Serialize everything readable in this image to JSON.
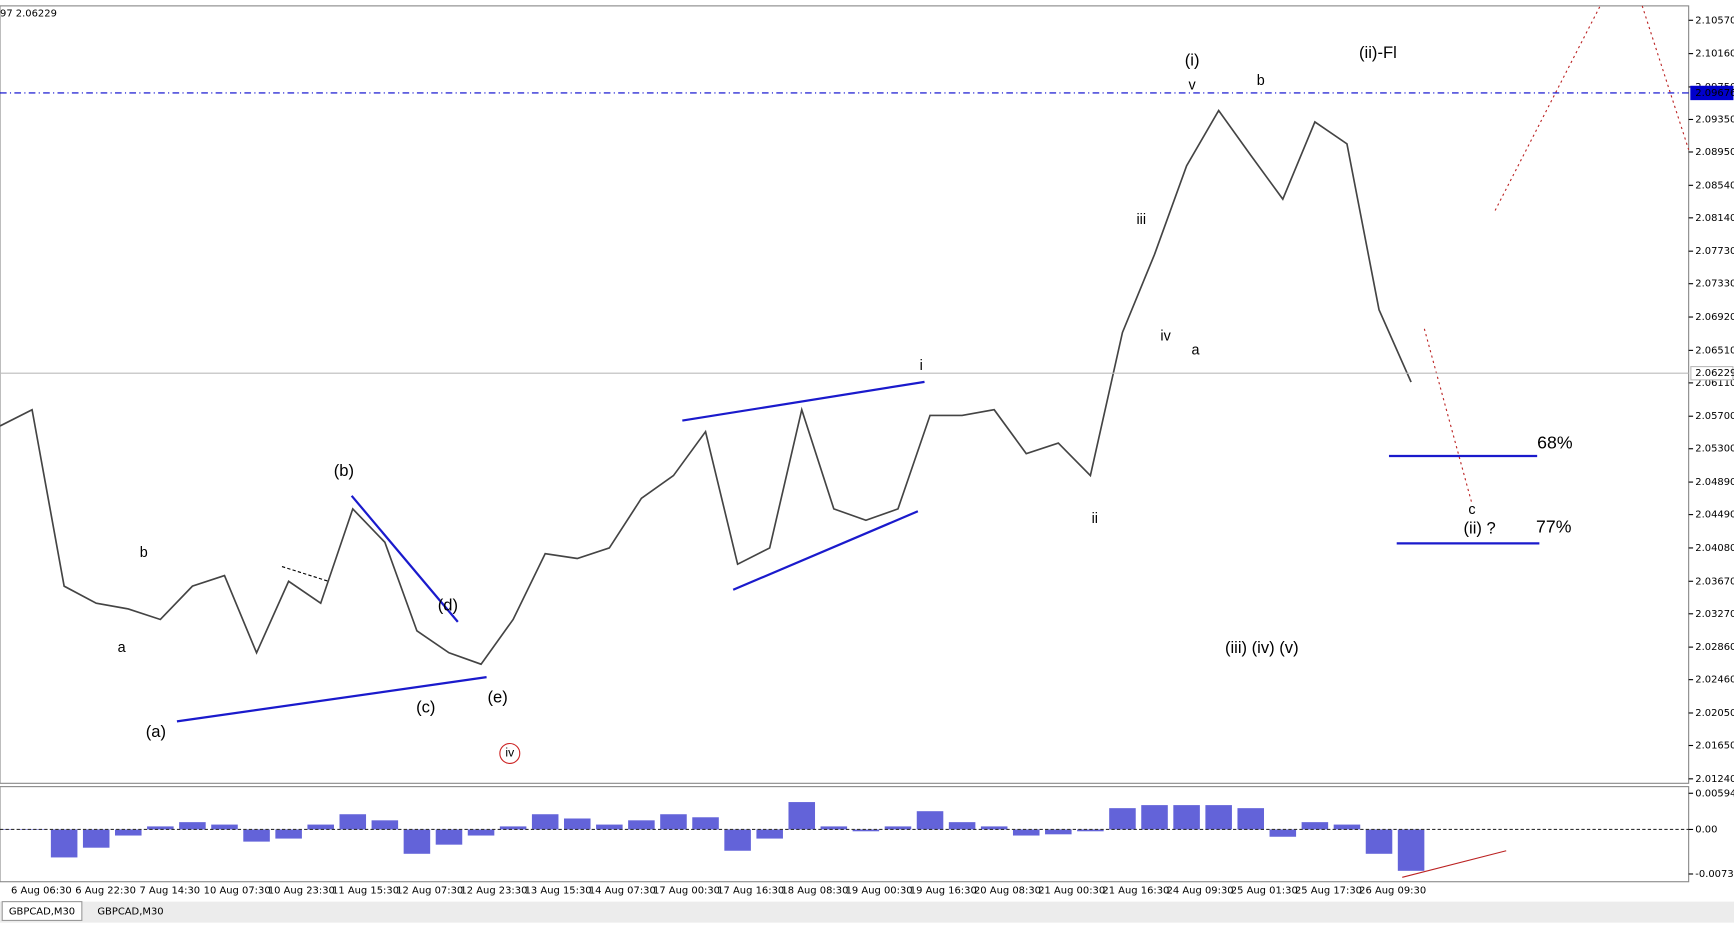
{
  "chart_data": [
    {
      "type": "line",
      "header": "97 2.06229",
      "series": [
        {
          "color": "#444444",
          "values": [
            2.0558,
            2.0578,
            2.0361,
            2.034,
            2.0333,
            2.032,
            2.0361,
            2.0374,
            2.0279,
            2.0367,
            2.034,
            2.0456,
            2.0415,
            2.0306,
            2.0279,
            2.0265,
            2.032,
            2.0401,
            2.0395,
            2.0408,
            2.0469,
            2.0497,
            2.0551,
            2.0388,
            2.0408,
            2.0578,
            2.0456,
            2.0442,
            2.0456,
            2.0571,
            2.0571,
            2.0578,
            2.0524,
            2.0537,
            2.0497,
            2.0673,
            2.0769,
            2.0878,
            2.0946,
            2.0891,
            2.0837,
            2.0932,
            2.0905,
            2.0701,
            2.0612
          ]
        }
      ],
      "ylim": [
        2.01185,
        2.10747
      ],
      "yticks": [
        {
          "value": 2.1057,
          "label": "2.10570"
        },
        {
          "value": 2.1016,
          "label": "2.10160"
        },
        {
          "value": 2.0975,
          "label": "2.09750"
        },
        {
          "value": 2.0935,
          "label": "2.09350"
        },
        {
          "value": 2.0895,
          "label": "2.08950"
        },
        {
          "value": 2.0854,
          "label": "2.08540"
        },
        {
          "value": 2.0814,
          "label": "2.08140"
        },
        {
          "value": 2.0773,
          "label": "2.07730"
        },
        {
          "value": 2.0733,
          "label": "2.07330"
        },
        {
          "value": 2.0692,
          "label": "2.06920"
        },
        {
          "value": 2.0651,
          "label": "2.06510"
        },
        {
          "value": 2.0611,
          "label": "2.06110"
        },
        {
          "value": 2.057,
          "label": "2.05700"
        },
        {
          "value": 2.053,
          "label": "2.05300"
        },
        {
          "value": 2.0489,
          "label": "2.04890"
        },
        {
          "value": 2.0449,
          "label": "2.04490"
        },
        {
          "value": 2.0408,
          "label": "2.04080"
        },
        {
          "value": 2.0367,
          "label": "2.03670"
        },
        {
          "value": 2.0327,
          "label": "2.03270"
        },
        {
          "value": 2.0286,
          "label": "2.02860"
        },
        {
          "value": 2.0246,
          "label": "2.02460"
        },
        {
          "value": 2.0205,
          "label": "2.02050"
        },
        {
          "value": 2.0165,
          "label": "2.01650"
        },
        {
          "value": 2.0124,
          "label": "2.01240"
        }
      ],
      "price_lines": [
        {
          "value": 2.09676,
          "label": "2.09676",
          "color": "#0000cc"
        },
        {
          "value": 2.06229,
          "label": "2.06229",
          "color": "#bbbbbb"
        }
      ],
      "x_tick_labels": [
        "6 Aug 06:30",
        "6 Aug 22:30",
        "7 Aug 14:30",
        "10 Aug 07:30",
        "10 Aug 23:30",
        "11 Aug 15:30",
        "12 Aug 07:30",
        "12 Aug 23:30",
        "13 Aug 15:30",
        "14 Aug 07:30",
        "17 Aug 00:30",
        "17 Aug 16:30",
        "18 Aug 08:30",
        "19 Aug 00:30",
        "19 Aug 16:30",
        "20 Aug 08:30",
        "21 Aug 00:30",
        "21 Aug 16:30",
        "24 Aug 09:30",
        "25 Aug 01:30",
        "25 Aug 17:30",
        "26 Aug 09:30"
      ],
      "annotations": [
        {
          "text": "(i)",
          "color": "#2e8b22"
        },
        {
          "text": "v",
          "color": "#2233bb"
        },
        {
          "text": "b",
          "color": "#2233bb"
        },
        {
          "text": "(ii)-Fl",
          "color": "#2e8b22"
        },
        {
          "text": "iii",
          "color": "#2233bb"
        },
        {
          "text": "iv",
          "color": "#2233bb"
        },
        {
          "text": "a",
          "color": "#2233bb"
        },
        {
          "text": "i",
          "color": "#2233bb"
        },
        {
          "text": "ii",
          "color": "#2233bb"
        },
        {
          "text": "68%",
          "color": "#777777"
        },
        {
          "text": "77%",
          "color": "#777777"
        },
        {
          "text": "c",
          "color": "#2233bb"
        },
        {
          "text": "(ii) ?",
          "color": "#2e8b22"
        },
        {
          "text": "(iii)  (iv)  (v)",
          "color": "#2e8b22"
        },
        {
          "text": "(b)",
          "color": "#2e8b22"
        },
        {
          "text": "b",
          "color": "#2233bb"
        },
        {
          "text": "a",
          "color": "#2233bb"
        },
        {
          "text": "(a)",
          "color": "#2e8b22"
        },
        {
          "text": "(c)",
          "color": "#2e8b22"
        },
        {
          "text": "(d)",
          "color": "#2e8b22"
        },
        {
          "text": "(e)",
          "color": "#2e8b22"
        },
        {
          "text": "iv",
          "color": "#cc2222"
        }
      ]
    },
    {
      "type": "bar",
      "series": [
        {
          "color": "#3c3cd0",
          "values": [
            0,
            0,
            -0.0046,
            -0.003,
            -0.001,
            0.0005,
            0.0012,
            0.0008,
            -0.002,
            -0.0015,
            0.0008,
            0.0025,
            0.0015,
            -0.004,
            -0.0025,
            -0.001,
            0.0005,
            0.0025,
            0.0018,
            0.0008,
            0.0015,
            0.0025,
            0.002,
            -0.0035,
            -0.0015,
            0.0045,
            0.0005,
            -0.0003,
            0.0005,
            0.003,
            0.0012,
            0.0005,
            -0.001,
            -0.0008,
            -0.0003,
            0.0035,
            0.004,
            0.004,
            0.004,
            0.0035,
            -0.0012,
            0.0012,
            0.0008,
            -0.004,
            -0.0068
          ]
        }
      ],
      "ylim": [
        -0.007321,
        0.005948
      ],
      "yticks": [
        0.005948,
        {
          "value": 0,
          "label": "0.00"
        },
        -0.007321
      ]
    }
  ],
  "tabs": [
    "GBPCAD,M30",
    "GBPCAD,M30"
  ]
}
